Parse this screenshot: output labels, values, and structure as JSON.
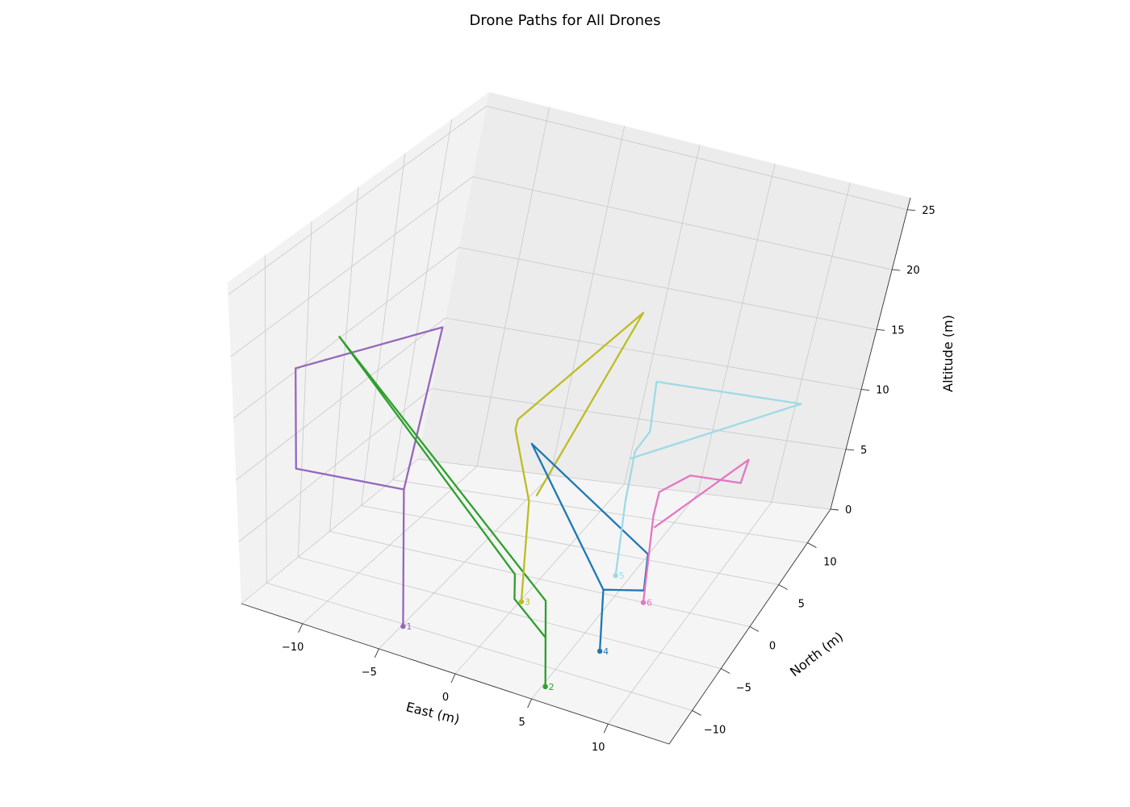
{
  "title": "Drone Paths for All Drones",
  "chart_data": {
    "type": "line3d",
    "title": "Drone Paths for All Drones",
    "xlabel": "East (m)",
    "ylabel": "North (m)",
    "zlabel": "Altitude (m)",
    "xlim": [
      -14,
      14
    ],
    "ylim": [
      -14,
      14
    ],
    "zlim": [
      0,
      26
    ],
    "xticks": [
      "−10",
      "−5",
      "0",
      "5",
      "10"
    ],
    "yticks": [
      "−10",
      "−5",
      "0",
      "5",
      "10"
    ],
    "zticks": [
      "0",
      "5",
      "10",
      "15",
      "20",
      "25"
    ],
    "grid": true,
    "series": [
      {
        "label": "1",
        "color": "#9467bd",
        "points": [
          [
            -4.9,
            -10.3,
            0
          ],
          [
            -4.9,
            -10.3,
            7
          ],
          [
            -4.9,
            -10.3,
            11
          ],
          [
            -2.5,
            -10.3,
            25
          ],
          [
            -11.9,
            -10.3,
            18
          ],
          [
            -11.9,
            -10.3,
            10
          ],
          [
            -4.9,
            -10.3,
            11
          ]
        ]
      },
      {
        "label": "2",
        "color": "#2ca02c",
        "points": [
          [
            5.2,
            -12.2,
            0
          ],
          [
            5.2,
            -12.2,
            4
          ],
          [
            2.4,
            -10.4,
            5
          ],
          [
            2.4,
            -10.4,
            7
          ],
          [
            -8.8,
            -10.8,
            22
          ],
          [
            5.2,
            -12.2,
            7
          ],
          [
            5.2,
            -12.2,
            4
          ]
        ]
      },
      {
        "label": "3",
        "color": "#bcbd22",
        "points": [
          [
            0.1,
            -3.3,
            0
          ],
          [
            0.1,
            -3.3,
            7
          ],
          [
            0.1,
            -3.3,
            8
          ],
          [
            -1.3,
            -2.9,
            13
          ],
          [
            -1.1,
            -3.1,
            14
          ],
          [
            6.2,
            -2.9,
            25
          ],
          [
            0.2,
            -2.4,
            8
          ]
        ]
      },
      {
        "label": "4",
        "color": "#1f77b4",
        "points": [
          [
            6.6,
            -6.6,
            0
          ],
          [
            6.6,
            -6.6,
            4
          ],
          [
            6.6,
            -6.6,
            5
          ],
          [
            8.8,
            -5.5,
            5
          ],
          [
            8.9,
            -5.5,
            8
          ],
          [
            0.9,
            -5.3,
            14
          ],
          [
            6.6,
            -6.6,
            5
          ]
        ]
      },
      {
        "label": "5",
        "color": "#9edae5",
        "points": [
          [
            4.1,
            2.4,
            0
          ],
          [
            4.1,
            2.4,
            6
          ],
          [
            4.3,
            2.4,
            10
          ],
          [
            5.2,
            2.1,
            12
          ],
          [
            5.2,
            2.1,
            16
          ],
          [
            13.5,
            4.8,
            15
          ],
          [
            3.9,
            2.9,
            9
          ]
        ]
      },
      {
        "label": "6",
        "color": "#e377c2",
        "points": [
          [
            6.9,
            0,
            0
          ],
          [
            6.9,
            0,
            7
          ],
          [
            7.1,
            0,
            9
          ],
          [
            8.5,
            1.2,
            10
          ],
          [
            11.6,
            1.7,
            10
          ],
          [
            11.9,
            1.7,
            12
          ],
          [
            7.0,
            0.2,
            6
          ]
        ]
      }
    ]
  }
}
